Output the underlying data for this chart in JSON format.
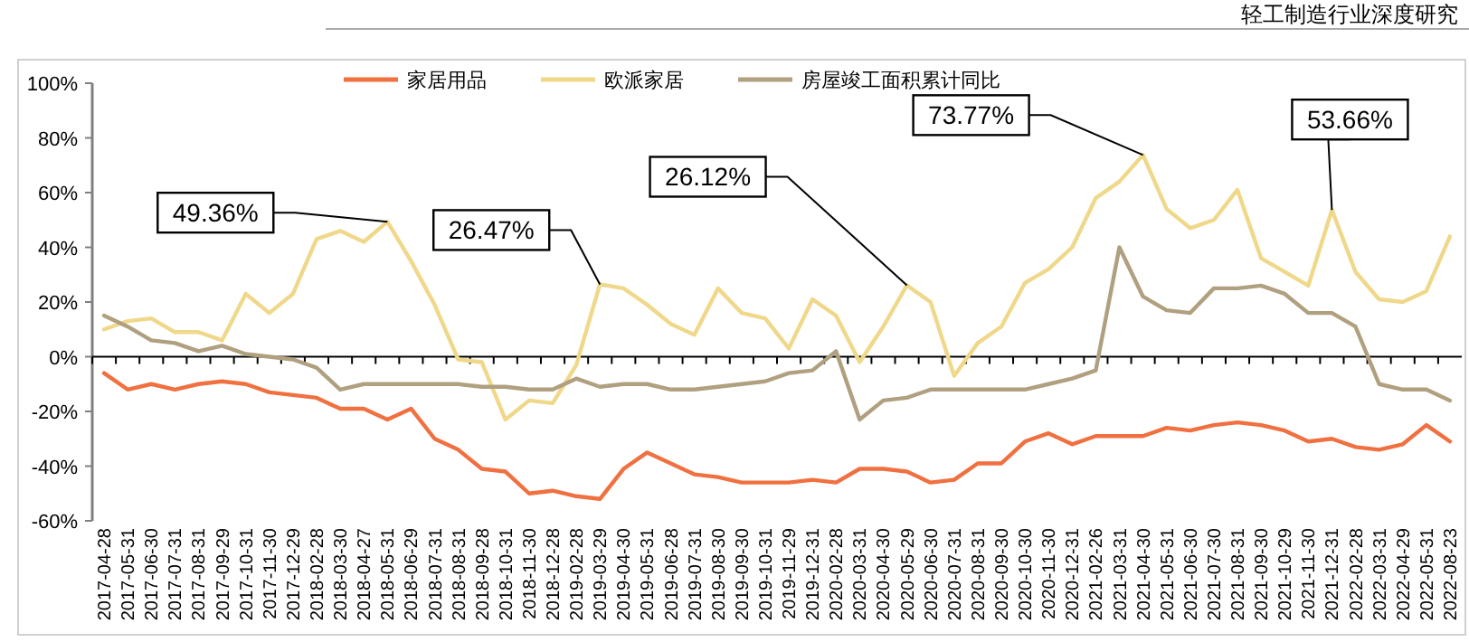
{
  "chart_data": {
    "type": "line",
    "categories": [
      "2017-04-28",
      "2017-05-31",
      "2017-06-30",
      "2017-07-31",
      "2017-08-31",
      "2017-09-29",
      "2017-10-31",
      "2017-11-30",
      "2017-12-29",
      "2018-02-28",
      "2018-03-30",
      "2018-04-27",
      "2018-05-31",
      "2018-06-29",
      "2018-07-31",
      "2018-08-31",
      "2018-09-28",
      "2018-10-31",
      "2018-11-30",
      "2018-12-28",
      "2019-02-28",
      "2019-03-29",
      "2019-04-30",
      "2019-05-31",
      "2019-06-28",
      "2019-07-31",
      "2019-08-30",
      "2019-09-30",
      "2019-10-31",
      "2019-11-29",
      "2019-12-31",
      "2020-02-28",
      "2020-03-31",
      "2020-04-30",
      "2020-05-29",
      "2020-06-30",
      "2020-07-31",
      "2020-08-31",
      "2020-09-30",
      "2020-10-30",
      "2020-11-30",
      "2020-12-31",
      "2021-02-26",
      "2021-03-31",
      "2021-04-30",
      "2021-05-31",
      "2021-06-30",
      "2021-07-30",
      "2021-08-31",
      "2021-09-30",
      "2021-10-29",
      "2021-11-30",
      "2021-12-31",
      "2022-02-28",
      "2022-03-31",
      "2022-04-29",
      "2022-05-31",
      "2022-08-23"
    ],
    "series": [
      {
        "name": "家居用品",
        "color": "#f07040",
        "values": [
          -6,
          -12,
          -10,
          -12,
          -10,
          -9,
          -10,
          -13,
          -14,
          -15,
          -19,
          -19,
          -23,
          -19,
          -30,
          -34,
          -41,
          -42,
          -50,
          -49,
          -51,
          -52,
          -41,
          -35,
          -39,
          -43,
          -44,
          -46,
          -46,
          -46,
          -45,
          -46,
          -41,
          -41,
          -42,
          -46,
          -45,
          -39,
          -39,
          -31,
          -28,
          -32,
          -29,
          -29,
          -29,
          -26,
          -27,
          -25,
          -24,
          -25,
          -27,
          -31,
          -30,
          -33,
          -34,
          -32,
          -25,
          -31
        ]
      },
      {
        "name": "欧派家居",
        "color": "#f0d88a",
        "values": [
          10,
          13,
          14,
          9,
          9,
          6,
          23,
          16,
          23,
          43,
          46,
          42,
          49.36,
          35,
          19,
          -1,
          -2,
          -23,
          -16,
          -17,
          -3,
          26.47,
          25,
          19,
          12,
          8,
          25,
          16,
          14,
          3,
          21,
          15,
          -2,
          11,
          26.12,
          20,
          -7,
          5,
          11,
          27,
          32,
          40,
          58,
          64,
          73.77,
          54,
          47,
          50,
          61,
          36,
          31,
          26,
          53.66,
          31,
          21,
          20,
          24,
          44
        ]
      },
      {
        "name": "房屋竣工面积累计同比",
        "color": "#b0a080",
        "values": [
          15,
          11,
          6,
          5,
          2,
          4,
          1,
          0,
          -1,
          -4,
          -12,
          -10,
          -10,
          -10,
          -10,
          -10,
          -11,
          -11,
          -12,
          -12,
          -8,
          -11,
          -10,
          -10,
          -12,
          -12,
          -11,
          -10,
          -9,
          -6,
          -5,
          2,
          -23,
          -16,
          -15,
          -12,
          -12,
          -12,
          -12,
          -12,
          -10,
          -8,
          -5,
          40,
          22,
          17,
          16,
          25,
          25,
          26,
          23,
          16,
          16,
          11,
          -10,
          -12,
          -12,
          -16
        ]
      }
    ],
    "ylim": [
      -60,
      100
    ],
    "yticks": [
      {
        "value": -60,
        "label": "-60%"
      },
      {
        "value": -40,
        "label": "-40%"
      },
      {
        "value": -20,
        "label": "-20%"
      },
      {
        "value": 0,
        "label": "0%"
      },
      {
        "value": 20,
        "label": "20%"
      },
      {
        "value": 40,
        "label": "40%"
      },
      {
        "value": 60,
        "label": "60%"
      },
      {
        "value": 80,
        "label": "80%"
      },
      {
        "value": 100,
        "label": "100%"
      }
    ],
    "legend": "top",
    "annotations": [
      "轻工制造行业深度研究",
      {
        "text": "49.36%",
        "x": "2018-05-31",
        "y": 49.36
      },
      {
        "text": "26.47%",
        "x": "2019-03-29",
        "y": 26.47
      },
      {
        "text": "26.12%",
        "x": "2020-05-29",
        "y": 26.12
      },
      {
        "text": "73.77%",
        "x": "2021-04-30",
        "y": 73.77
      },
      {
        "text": "53.66%",
        "x": "2021-12-31",
        "y": 53.66
      }
    ]
  }
}
